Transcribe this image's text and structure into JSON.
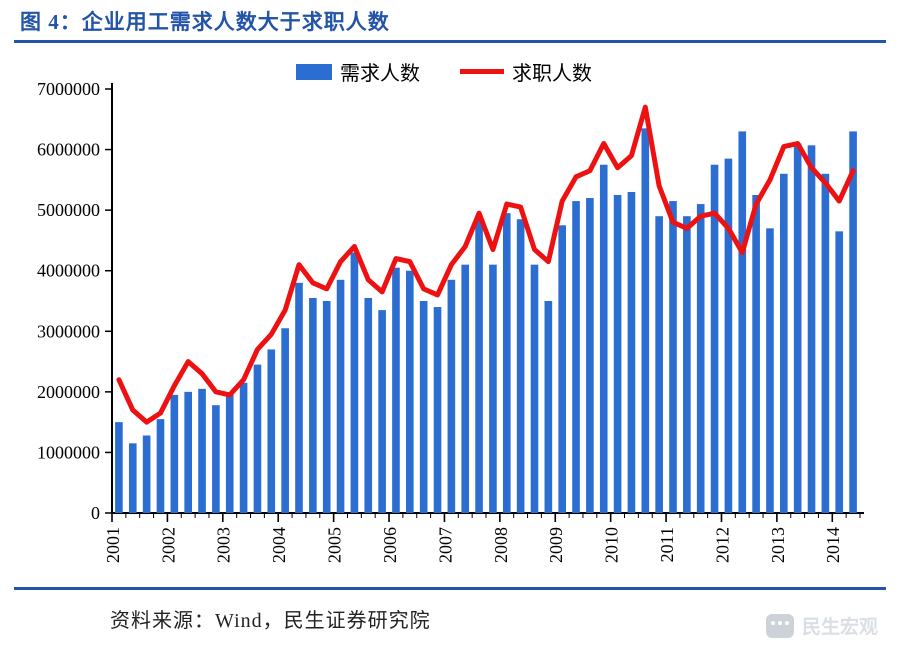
{
  "title": "图 4：企业用工需求人数大于求职人数",
  "source": "资料来源：Wind，民生证券研究院",
  "watermark": "民生宏观",
  "chart": {
    "type": "bar_plus_line",
    "legend": {
      "bar": "需求人数",
      "line": "求职人数"
    },
    "colors": {
      "bar": "#2b6dd1",
      "line": "#ee1111",
      "axis": "#000000",
      "title_accent": "#2354a8",
      "background": "#ffffff"
    },
    "line_width": 5,
    "bar_width_ratio": 0.55,
    "y_axis": {
      "min": 0,
      "max": 7000000,
      "tick_step": 1000000,
      "ticks": [
        0,
        1000000,
        2000000,
        3000000,
        4000000,
        5000000,
        6000000,
        7000000
      ],
      "tick_fontsize": 18
    },
    "x_axis": {
      "years": [
        2001,
        2002,
        2003,
        2004,
        2005,
        2006,
        2007,
        2008,
        2009,
        2010,
        2011,
        2012,
        2013,
        2014
      ],
      "tick_fontsize": 18,
      "label_rotation": -90
    },
    "bar_values": [
      1500000,
      1150000,
      1280000,
      1550000,
      1950000,
      2000000,
      2050000,
      1780000,
      1980000,
      2150000,
      2450000,
      2700000,
      3050000,
      3800000,
      3550000,
      3500000,
      3850000,
      4300000,
      3550000,
      3350000,
      4050000,
      4000000,
      3500000,
      3400000,
      3850000,
      4100000,
      4850000,
      4100000,
      4950000,
      4850000,
      4100000,
      3500000,
      4750000,
      5150000,
      5200000,
      5750000,
      5250000,
      5300000,
      6350000,
      4900000,
      5150000,
      4900000,
      5100000,
      5750000,
      5850000,
      6300000,
      5250000,
      4700000,
      5600000,
      6100000,
      6070000,
      5600000,
      4650000,
      6300000
    ],
    "line_values": [
      2200000,
      1700000,
      1500000,
      1650000,
      2100000,
      2500000,
      2300000,
      2000000,
      1950000,
      2200000,
      2700000,
      2950000,
      3350000,
      4100000,
      3800000,
      3700000,
      4150000,
      4400000,
      3850000,
      3650000,
      4200000,
      4150000,
      3700000,
      3600000,
      4100000,
      4400000,
      4950000,
      4350000,
      5100000,
      5050000,
      4350000,
      4150000,
      5150000,
      5550000,
      5650000,
      6100000,
      5700000,
      5900000,
      6700000,
      5400000,
      4800000,
      4700000,
      4900000,
      4950000,
      4700000,
      4300000,
      5100000,
      5500000,
      6050000,
      6100000,
      5700000,
      5450000,
      5150000,
      5650000
    ]
  }
}
